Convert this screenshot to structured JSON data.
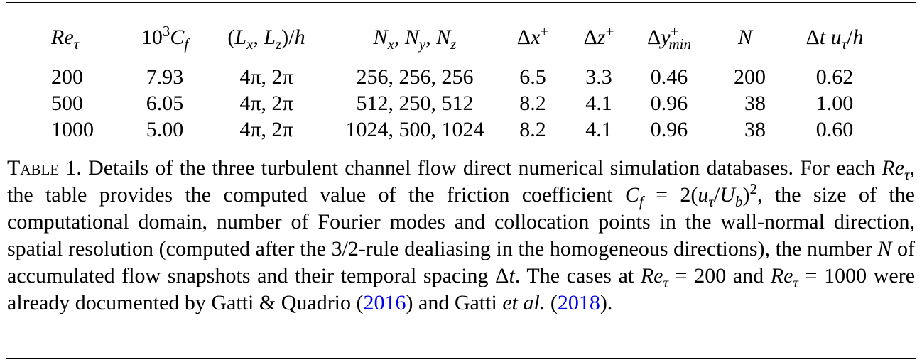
{
  "table": {
    "headers": [
      "Reτ",
      "10³Cf",
      "(Lx, Lz)/h",
      "Nx, Ny, Nz",
      "Δx⁺",
      "Δz⁺",
      "Δy⁺min",
      "N",
      "Δt uτ/h"
    ],
    "rows": [
      [
        "200",
        "7.93",
        "4π, 2π",
        "256, 256, 256",
        "6.5",
        "3.3",
        "0.46",
        "200",
        "0.62"
      ],
      [
        "500",
        "6.05",
        "4π, 2π",
        "512, 250, 512",
        "8.2",
        "4.1",
        "0.96",
        "38",
        "1.00"
      ],
      [
        "1000",
        "5.00",
        "4π, 2π",
        "1024, 500, 1024",
        "8.2",
        "4.1",
        "0.96",
        "38",
        "0.60"
      ]
    ]
  },
  "caption": {
    "label": "Table 1.",
    "text": "Details of the three turbulent channel flow direct numerical simulation databases. For each Reτ, the table provides the computed value of the friction coefficient Cf = 2(uτ/Ub)², the size of the computational domain, number of Fourier modes and collocation points in the wall-normal direction, spatial resolution (computed after the 3/2-rule dealiasing in the homogeneous directions), the number N of accumulated flow snapshots and their temporal spacing Δt. The cases at Reτ = 200 and Reτ = 1000 were already documented by Gatti & Quadrio (2016) and Gatti et al. (2018).",
    "citations": [
      "2016",
      "2018"
    ]
  }
}
